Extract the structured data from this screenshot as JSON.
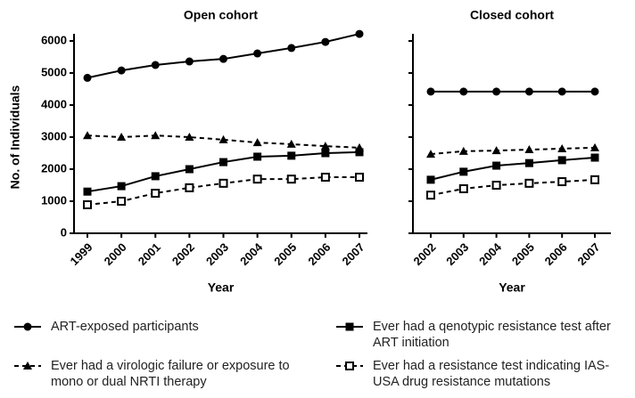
{
  "chart_data": [
    {
      "type": "line",
      "title": "Open cohort",
      "xlabel": "Year",
      "ylabel": "No. of Individuals",
      "categories": [
        "1999",
        "2000",
        "2001",
        "2002",
        "2003",
        "2004",
        "2005",
        "2006",
        "2007"
      ],
      "ylim": [
        0,
        6000
      ],
      "yticks": [
        0,
        1000,
        2000,
        3000,
        4000,
        5000,
        6000
      ],
      "series": [
        {
          "name": "ART-exposed participants",
          "color": "#000000",
          "marker": "circle",
          "line_style": "solid",
          "values": [
            4850,
            5080,
            5250,
            5360,
            5440,
            5610,
            5780,
            5970,
            6220
          ]
        },
        {
          "name": "Ever had a virologic failure or exposure to mono or dual NRTI therapy",
          "color": "#000000",
          "marker": "triangle",
          "line_style": "dashed",
          "values": [
            3050,
            3000,
            3050,
            3000,
            2920,
            2830,
            2780,
            2720,
            2670
          ]
        },
        {
          "name": "Ever had a qenotypic resistance test after ART initiation",
          "color": "#000000",
          "marker": "square",
          "line_style": "solid",
          "values": [
            1300,
            1470,
            1780,
            2000,
            2220,
            2390,
            2420,
            2500,
            2530
          ]
        },
        {
          "name": "Ever had a resistance test indicating IAS-USA drug resistance mutations",
          "color": "#000000",
          "marker": "open-square",
          "line_style": "dashed",
          "values": [
            890,
            1000,
            1250,
            1420,
            1560,
            1690,
            1690,
            1750,
            1750
          ]
        }
      ]
    },
    {
      "type": "line",
      "title": "Closed cohort",
      "xlabel": "Year",
      "categories": [
        "2002",
        "2003",
        "2004",
        "2005",
        "2006",
        "2007"
      ],
      "ylim": [
        0,
        6000
      ],
      "yticks": [
        0,
        1000,
        2000,
        3000,
        4000,
        5000,
        6000
      ],
      "series": [
        {
          "color": "#000000",
          "marker": "circle",
          "line_style": "solid",
          "values": [
            4420,
            4420,
            4420,
            4420,
            4420,
            4420
          ]
        },
        {
          "color": "#000000",
          "marker": "triangle",
          "line_style": "dashed",
          "values": [
            2470,
            2560,
            2580,
            2610,
            2640,
            2670
          ]
        },
        {
          "color": "#000000",
          "marker": "square",
          "line_style": "solid",
          "values": [
            1670,
            1920,
            2110,
            2190,
            2280,
            2360
          ]
        },
        {
          "color": "#000000",
          "marker": "open-square",
          "line_style": "dashed",
          "values": [
            1190,
            1390,
            1500,
            1560,
            1610,
            1670
          ]
        }
      ]
    }
  ]
}
